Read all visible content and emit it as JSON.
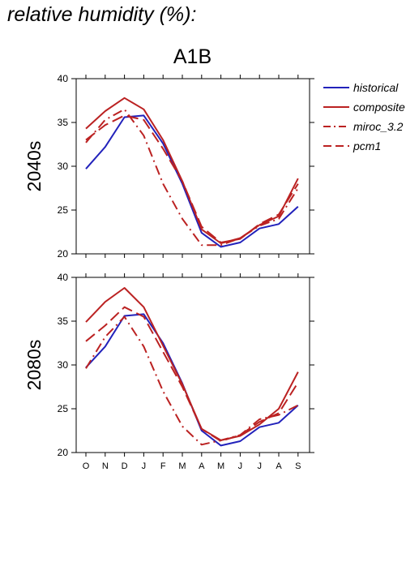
{
  "title": "relative humidity (%):",
  "scenario": "A1B",
  "colors": {
    "historical": "#2222bb",
    "composite": "#bb2222",
    "miroc_3.2": "#bb2222",
    "pcm1": "#bb2222"
  },
  "chart_data": [
    {
      "type": "line",
      "panel_label": "2040s",
      "categories": [
        "O",
        "N",
        "D",
        "J",
        "F",
        "M",
        "A",
        "M",
        "J",
        "J",
        "A",
        "S"
      ],
      "ylim": [
        20,
        40
      ],
      "yticks": [
        20,
        25,
        30,
        35,
        40
      ],
      "series": [
        {
          "name": "historical",
          "style": "solid",
          "color": "#2222bb",
          "values": [
            29.7,
            32.2,
            35.6,
            35.8,
            32.6,
            28.0,
            22.4,
            20.8,
            21.3,
            22.9,
            23.4,
            25.4
          ]
        },
        {
          "name": "composite",
          "style": "solid",
          "color": "#bb2222",
          "values": [
            34.3,
            36.3,
            37.8,
            36.5,
            33.0,
            28.3,
            22.8,
            21.2,
            21.8,
            23.3,
            24.3,
            28.6
          ]
        },
        {
          "name": "miroc_3.2",
          "style": "dashdot",
          "color": "#bb2222",
          "values": [
            32.7,
            35.3,
            36.5,
            33.5,
            28.0,
            24.0,
            21.0,
            21.0,
            21.8,
            23.2,
            24.0,
            27.5
          ]
        },
        {
          "name": "pcm1",
          "style": "dash",
          "color": "#bb2222",
          "values": [
            33.0,
            34.7,
            35.8,
            35.3,
            32.0,
            28.3,
            23.1,
            21.3,
            21.7,
            23.4,
            24.5,
            28.0
          ]
        }
      ]
    },
    {
      "type": "line",
      "panel_label": "2080s",
      "categories": [
        "O",
        "N",
        "D",
        "J",
        "F",
        "M",
        "A",
        "M",
        "J",
        "J",
        "A",
        "S"
      ],
      "ylim": [
        20,
        40
      ],
      "yticks": [
        20,
        25,
        30,
        35,
        40
      ],
      "series": [
        {
          "name": "historical",
          "style": "solid",
          "color": "#2222bb",
          "values": [
            29.7,
            32.1,
            35.6,
            35.8,
            32.5,
            27.9,
            22.5,
            20.8,
            21.3,
            22.9,
            23.4,
            25.4
          ]
        },
        {
          "name": "composite",
          "style": "solid",
          "color": "#bb2222",
          "values": [
            34.9,
            37.2,
            38.8,
            36.6,
            32.2,
            27.8,
            22.7,
            21.4,
            21.9,
            23.2,
            25.0,
            29.2
          ]
        },
        {
          "name": "miroc_3.2",
          "style": "dashdot",
          "color": "#bb2222",
          "values": [
            29.6,
            33.2,
            35.5,
            32.1,
            27.0,
            23.0,
            20.9,
            21.4,
            22.0,
            23.8,
            24.3,
            25.4
          ]
        },
        {
          "name": "pcm1",
          "style": "dash",
          "color": "#bb2222",
          "values": [
            32.7,
            34.5,
            36.6,
            35.5,
            31.5,
            27.5,
            22.7,
            21.3,
            22.0,
            23.5,
            24.5,
            28.0
          ]
        }
      ]
    }
  ]
}
